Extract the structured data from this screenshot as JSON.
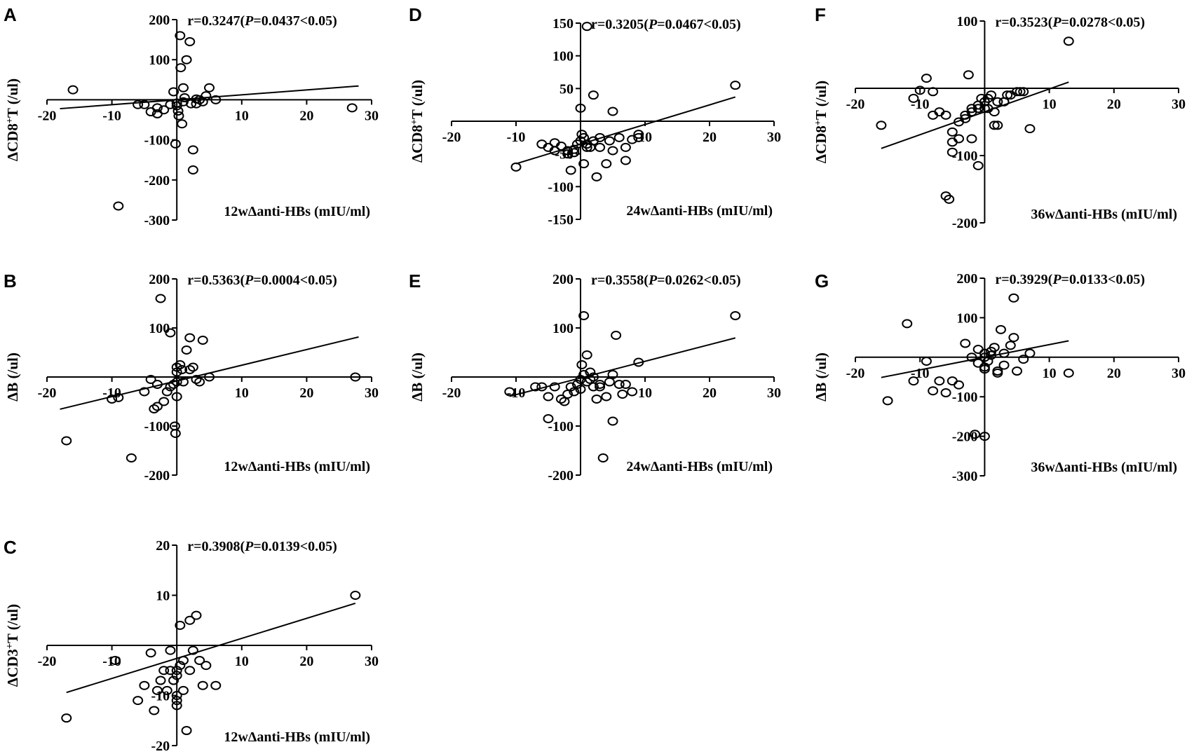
{
  "figure": {
    "background": "#ffffff",
    "ink": "#000000"
  },
  "chart_data": [
    {
      "panel": "A",
      "type": "scatter",
      "annotation": {
        "r": "r=0.3247(",
        "p_italic": "P",
        "rest": "=0.0437<0.05)"
      },
      "xlabel": "12wΔanti-HBs (mIU/ml)",
      "ylabel": {
        "pre": "ΔCD8",
        "sup": "+",
        "post": "T (/ul)"
      },
      "xlim": [
        -20,
        30
      ],
      "ylim": [
        -300,
        200
      ],
      "xticks": [
        -20,
        -10,
        0,
        10,
        20,
        30
      ],
      "yticks": [
        -300,
        -200,
        -100,
        0,
        100,
        200
      ],
      "xtick_labels": [
        "-20",
        "-10",
        "0",
        "10",
        "20",
        "30"
      ],
      "ytick_labels": [
        "-300",
        "-200",
        "-100",
        "0",
        "100",
        "200"
      ],
      "fit": {
        "slope": 1.23,
        "intercept": 0
      },
      "points": [
        [
          -16,
          25
        ],
        [
          -9,
          -265
        ],
        [
          -6,
          -12
        ],
        [
          -5,
          -12
        ],
        [
          -4,
          -30
        ],
        [
          -3,
          -35
        ],
        [
          -3,
          -20
        ],
        [
          -2,
          -25
        ],
        [
          -1,
          -12
        ],
        [
          -0.5,
          20
        ],
        [
          -0.2,
          -110
        ],
        [
          0,
          -8
        ],
        [
          0,
          -15
        ],
        [
          0.2,
          -28
        ],
        [
          0.3,
          -40
        ],
        [
          0.5,
          160
        ],
        [
          0.6,
          80
        ],
        [
          0.8,
          -60
        ],
        [
          1,
          30
        ],
        [
          1,
          -5
        ],
        [
          1.2,
          5
        ],
        [
          1.5,
          100
        ],
        [
          2,
          145
        ],
        [
          2.2,
          -10
        ],
        [
          2.5,
          -175
        ],
        [
          2.5,
          -125
        ],
        [
          3,
          -10
        ],
        [
          3,
          2
        ],
        [
          3.5,
          0
        ],
        [
          4,
          -5
        ],
        [
          4.5,
          10
        ],
        [
          5,
          30
        ],
        [
          6,
          0
        ],
        [
          27,
          -20
        ]
      ]
    },
    {
      "panel": "B",
      "type": "scatter",
      "annotation": {
        "r": "r=0.5363(",
        "p_italic": "P",
        "rest": "=0.0004<0.05)"
      },
      "xlabel": "12wΔanti-HBs (mIU/ml)",
      "ylabel": {
        "pre": "ΔB (/ul)",
        "sup": "",
        "post": ""
      },
      "xlim": [
        -20,
        30
      ],
      "ylim": [
        -200,
        200
      ],
      "xticks": [
        -20,
        -10,
        0,
        10,
        20,
        30
      ],
      "yticks": [
        -200,
        -100,
        0,
        100,
        200
      ],
      "xtick_labels": [
        "-20",
        "-10",
        "0",
        "10",
        "20",
        "30"
      ],
      "ytick_labels": [
        "-200",
        "-100",
        "0",
        "100",
        "200"
      ],
      "fit": {
        "slope": 3.2,
        "intercept": -8
      },
      "points": [
        [
          -17,
          -130
        ],
        [
          -10,
          -45
        ],
        [
          -9,
          -42
        ],
        [
          -7,
          -165
        ],
        [
          -5,
          -30
        ],
        [
          -4,
          -5
        ],
        [
          -3.5,
          -65
        ],
        [
          -3,
          -60
        ],
        [
          -3,
          -15
        ],
        [
          -2,
          -50
        ],
        [
          -1.5,
          -30
        ],
        [
          -1,
          90
        ],
        [
          -1,
          -20
        ],
        [
          -0.5,
          -15
        ],
        [
          -0.3,
          -100
        ],
        [
          -0.2,
          -115
        ],
        [
          0,
          -40
        ],
        [
          0,
          -10
        ],
        [
          0,
          10
        ],
        [
          0,
          20
        ],
        [
          0.5,
          25
        ],
        [
          0.8,
          15
        ],
        [
          1,
          -10
        ],
        [
          1.5,
          55
        ],
        [
          2,
          80
        ],
        [
          2,
          15
        ],
        [
          2.5,
          20
        ],
        [
          3,
          -5
        ],
        [
          3.5,
          -10
        ],
        [
          4,
          75
        ],
        [
          5,
          0
        ],
        [
          -2.5,
          160
        ],
        [
          27.5,
          0
        ]
      ]
    },
    {
      "panel": "C",
      "type": "scatter",
      "annotation": {
        "r": "r=0.3908(",
        "p_italic": "P",
        "rest": "=0.0139<0.05)"
      },
      "xlabel": "12wΔanti-HBs (mIU/ml)",
      "ylabel": {
        "pre": "ΔCD3",
        "sup": "+",
        "post": "T (/ul)"
      },
      "xlim": [
        -20,
        30
      ],
      "ylim": [
        -20,
        20
      ],
      "xticks": [
        -20,
        -10,
        0,
        10,
        20,
        30
      ],
      "yticks": [
        -20,
        -10,
        0,
        10,
        20
      ],
      "xtick_labels": [
        "-20",
        "-10",
        "0",
        "10",
        "20",
        "30"
      ],
      "ytick_labels": [
        "-20",
        "-10",
        "0",
        "10",
        "20"
      ],
      "fit": {
        "slope": 0.4,
        "intercept": -2.6
      },
      "points": [
        [
          -17,
          -14.5
        ],
        [
          -9.5,
          -3
        ],
        [
          -6,
          -11
        ],
        [
          -5,
          -8
        ],
        [
          -4,
          -1.5
        ],
        [
          -3.5,
          -13
        ],
        [
          -3,
          -9
        ],
        [
          -2.5,
          -7
        ],
        [
          -2,
          -5
        ],
        [
          -1.5,
          -9
        ],
        [
          -1,
          -1
        ],
        [
          -1,
          -5
        ],
        [
          -0.5,
          -7
        ],
        [
          0,
          -5
        ],
        [
          0,
          -6
        ],
        [
          0,
          -10
        ],
        [
          0,
          -11
        ],
        [
          0,
          -12
        ],
        [
          0.5,
          4
        ],
        [
          0.5,
          -4
        ],
        [
          1,
          -9
        ],
        [
          1,
          -3
        ],
        [
          1.5,
          -17
        ],
        [
          2,
          -5
        ],
        [
          2,
          5
        ],
        [
          2.5,
          -1
        ],
        [
          3,
          6
        ],
        [
          3.5,
          -3
        ],
        [
          4,
          -8
        ],
        [
          4.5,
          -4
        ],
        [
          6,
          -8
        ],
        [
          27.5,
          10
        ]
      ]
    },
    {
      "panel": "D",
      "type": "scatter",
      "annotation": {
        "r": "r=0.3205(",
        "p_italic": "P",
        "rest": "=0.0467<0.05)"
      },
      "xlabel": "24wΔanti-HBs (mIU/ml)",
      "ylabel": {
        "pre": "ΔCD8",
        "sup": "+",
        "post": "T (/ul)"
      },
      "xlim": [
        -20,
        30
      ],
      "ylim": [
        -150,
        150
      ],
      "xticks": [
        -20,
        -10,
        0,
        10,
        20,
        30
      ],
      "yticks": [
        -150,
        -100,
        -50,
        0,
        50,
        100,
        150
      ],
      "xtick_labels": [
        "-20",
        "-10",
        "0",
        "10",
        "20",
        "30"
      ],
      "ytick_labels": [
        "-150",
        "-100",
        "-50",
        "0",
        "50",
        "100",
        "150"
      ],
      "fit": {
        "slope": 3,
        "intercept": -35
      },
      "points": [
        [
          -10,
          -70
        ],
        [
          -6,
          -35
        ],
        [
          -5,
          -40
        ],
        [
          -4,
          -33
        ],
        [
          -4,
          -45
        ],
        [
          -3,
          -38
        ],
        [
          -2,
          -45
        ],
        [
          -2,
          -50
        ],
        [
          -1.5,
          -75
        ],
        [
          -1,
          -48
        ],
        [
          -1,
          -43
        ],
        [
          -0.5,
          -35
        ],
        [
          0,
          20
        ],
        [
          0,
          -30
        ],
        [
          0.2,
          -20
        ],
        [
          0.5,
          -25
        ],
        [
          0.5,
          -65
        ],
        [
          1,
          -40
        ],
        [
          1,
          -35
        ],
        [
          1.5,
          -40
        ],
        [
          2,
          -30
        ],
        [
          2,
          40
        ],
        [
          2.5,
          -85
        ],
        [
          3,
          -25
        ],
        [
          3,
          -40
        ],
        [
          4,
          -65
        ],
        [
          4.5,
          -30
        ],
        [
          5,
          -45
        ],
        [
          5,
          15
        ],
        [
          6,
          -25
        ],
        [
          7,
          -60
        ],
        [
          7,
          -40
        ],
        [
          8,
          -28
        ],
        [
          9,
          -25
        ],
        [
          9,
          -20
        ],
        [
          1,
          145
        ],
        [
          24,
          55
        ]
      ]
    },
    {
      "panel": "E",
      "type": "scatter",
      "annotation": {
        "r": "r=0.3558(",
        "p_italic": "P",
        "rest": "=0.0262<0.05)"
      },
      "xlabel": "24wΔanti-HBs (mIU/ml)",
      "ylabel": {
        "pre": "ΔB (/ul)",
        "sup": "",
        "post": ""
      },
      "xlim": [
        -20,
        30
      ],
      "ylim": [
        -200,
        200
      ],
      "xticks": [
        -20,
        -10,
        0,
        10,
        20,
        30
      ],
      "yticks": [
        -200,
        -100,
        0,
        100,
        200
      ],
      "xtick_labels": [
        "-20",
        "-10",
        "0",
        "10",
        "20",
        "30"
      ],
      "ytick_labels": [
        "-200",
        "-100",
        "0",
        "100",
        "200"
      ],
      "fit": {
        "slope": 3.4,
        "intercept": -2
      },
      "points": [
        [
          -11,
          -30
        ],
        [
          -7,
          -20
        ],
        [
          -6,
          -20
        ],
        [
          -5,
          -85
        ],
        [
          -5,
          -40
        ],
        [
          -4,
          -20
        ],
        [
          -3,
          -45
        ],
        [
          -2.5,
          -50
        ],
        [
          -2,
          -35
        ],
        [
          -1.5,
          -20
        ],
        [
          -1,
          -30
        ],
        [
          -0.5,
          -15
        ],
        [
          0,
          -5
        ],
        [
          0,
          -25
        ],
        [
          0.2,
          25
        ],
        [
          0.5,
          125
        ],
        [
          0.5,
          5
        ],
        [
          1,
          -10
        ],
        [
          1,
          45
        ],
        [
          1.5,
          10
        ],
        [
          1.5,
          -5
        ],
        [
          2,
          0
        ],
        [
          2,
          -20
        ],
        [
          2.5,
          -45
        ],
        [
          3,
          -15
        ],
        [
          3,
          -20
        ],
        [
          4,
          -40
        ],
        [
          4.5,
          -10
        ],
        [
          5,
          5
        ],
        [
          5,
          -90
        ],
        [
          5.5,
          85
        ],
        [
          6,
          -15
        ],
        [
          6.5,
          -35
        ],
        [
          7,
          -15
        ],
        [
          8,
          -30
        ],
        [
          9,
          30
        ],
        [
          3.5,
          -165
        ],
        [
          24,
          125
        ]
      ]
    },
    {
      "panel": "F",
      "type": "scatter",
      "annotation": {
        "r": "r=0.3523(",
        "p_italic": "P",
        "rest": "=0.0278<0.05)"
      },
      "xlabel": "36wΔanti-HBs (mIU/ml)",
      "ylabel": {
        "pre": "ΔCD8",
        "sup": "+",
        "post": "T (/ul)"
      },
      "xlim": [
        -20,
        30
      ],
      "ylim": [
        -200,
        100
      ],
      "xticks": [
        -20,
        -10,
        0,
        10,
        20,
        30
      ],
      "yticks": [
        -200,
        -100,
        0,
        100
      ],
      "xtick_labels": [
        "-20",
        "-10",
        "0",
        "10",
        "20",
        "30"
      ],
      "ytick_labels": [
        "-200",
        "-100",
        "0",
        "100"
      ],
      "fit": {
        "slope": 3.4,
        "intercept": -35
      },
      "points": [
        [
          -16,
          -55
        ],
        [
          -11,
          -15
        ],
        [
          -10,
          -3
        ],
        [
          -9,
          15
        ],
        [
          -8,
          -40
        ],
        [
          -7,
          -35
        ],
        [
          -6,
          -40
        ],
        [
          -5,
          -95
        ],
        [
          -5,
          -80
        ],
        [
          -5,
          -65
        ],
        [
          -4,
          -75
        ],
        [
          -4,
          -50
        ],
        [
          -3,
          -45
        ],
        [
          -3,
          -40
        ],
        [
          -2,
          -35
        ],
        [
          -2,
          -75
        ],
        [
          -2,
          -30
        ],
        [
          -1,
          -30
        ],
        [
          -1,
          -25
        ],
        [
          -0.5,
          -15
        ],
        [
          0,
          -20
        ],
        [
          0,
          -30
        ],
        [
          0.5,
          -30
        ],
        [
          0.5,
          -15
        ],
        [
          1,
          -10
        ],
        [
          1.5,
          -55
        ],
        [
          1.5,
          -35
        ],
        [
          2,
          -20
        ],
        [
          2,
          -55
        ],
        [
          3,
          -20
        ],
        [
          3.5,
          -10
        ],
        [
          4,
          -10
        ],
        [
          5,
          -5
        ],
        [
          5.5,
          -5
        ],
        [
          6,
          -5
        ],
        [
          7,
          -60
        ],
        [
          3,
          -20
        ],
        [
          -6,
          -160
        ],
        [
          -5.5,
          -165
        ],
        [
          -8,
          -5
        ],
        [
          -2.5,
          20
        ],
        [
          -1,
          -115
        ],
        [
          13,
          70
        ]
      ]
    },
    {
      "panel": "G",
      "type": "scatter",
      "annotation": {
        "r": "r=0.3929(",
        "p_italic": "P",
        "rest": "=0.0133<0.05)"
      },
      "xlabel": "36wΔanti-HBs (mIU/ml)",
      "ylabel": {
        "pre": "ΔB (/ul)",
        "sup": "",
        "post": ""
      },
      "xlim": [
        -20,
        30
      ],
      "ylim": [
        -300,
        200
      ],
      "xticks": [
        -20,
        -10,
        0,
        10,
        20,
        30
      ],
      "yticks": [
        -300,
        -200,
        -100,
        0,
        100,
        200
      ],
      "xtick_labels": [
        "-20",
        "-10",
        "0",
        "10",
        "20",
        "30"
      ],
      "ytick_labels": [
        "-300",
        "-200",
        "-100",
        "0",
        "100",
        "200"
      ],
      "fit": {
        "slope": 3.2,
        "intercept": 0
      },
      "points": [
        [
          -15,
          -110
        ],
        [
          -12,
          85
        ],
        [
          -11,
          -60
        ],
        [
          -9,
          -10
        ],
        [
          -8,
          -85
        ],
        [
          -7,
          -60
        ],
        [
          -6,
          -90
        ],
        [
          -5,
          -60
        ],
        [
          -4,
          -70
        ],
        [
          -3,
          35
        ],
        [
          -2,
          0
        ],
        [
          -1,
          20
        ],
        [
          -1,
          -15
        ],
        [
          0,
          0
        ],
        [
          0,
          10
        ],
        [
          0,
          -25
        ],
        [
          0,
          -30
        ],
        [
          0.5,
          -10
        ],
        [
          1,
          5
        ],
        [
          1,
          15
        ],
        [
          1.5,
          25
        ],
        [
          2,
          -40
        ],
        [
          2,
          -35
        ],
        [
          2.5,
          70
        ],
        [
          3,
          -20
        ],
        [
          3,
          10
        ],
        [
          4,
          30
        ],
        [
          4.5,
          150
        ],
        [
          4.5,
          50
        ],
        [
          5,
          -35
        ],
        [
          6,
          -5
        ],
        [
          7,
          10
        ],
        [
          -1.5,
          -195
        ],
        [
          0,
          -200
        ],
        [
          13,
          -40
        ]
      ]
    }
  ]
}
